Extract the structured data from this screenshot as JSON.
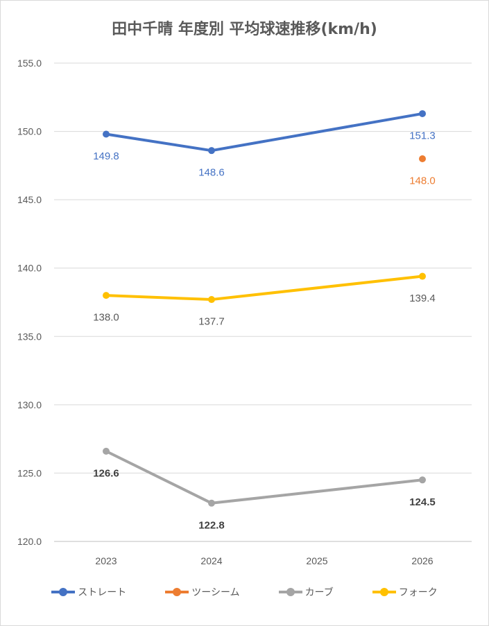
{
  "chart_data": {
    "type": "line",
    "title": "田中千晴 年度別 平均球速推移(km/h)",
    "categories": [
      "2023",
      "2024",
      "2025",
      "2026"
    ],
    "y_tick_labels": [
      "120.0",
      "125.0",
      "130.0",
      "135.0",
      "140.0",
      "145.0",
      "150.0",
      "155.0"
    ],
    "ylim": [
      120,
      155
    ],
    "grid": true,
    "legend_position": "bottom",
    "series": [
      {
        "name": "ストレート",
        "color": "#4472c4",
        "values": [
          149.8,
          148.6,
          null,
          151.3
        ],
        "labels": [
          "149.8",
          "148.6",
          null,
          "151.3"
        ],
        "label_color": "#4472c4",
        "label_bold": false,
        "label_dy": [
          1.6,
          1.6,
          0,
          1.6
        ]
      },
      {
        "name": "ツーシーム",
        "color": "#ed7d31",
        "values": [
          null,
          null,
          null,
          148.0
        ],
        "labels": [
          null,
          null,
          null,
          "148.0"
        ],
        "label_color": "#ed7d31",
        "label_bold": false,
        "label_dy": [
          0,
          0,
          0,
          1.6
        ]
      },
      {
        "name": "カーブ",
        "color": "#a5a5a5",
        "values": [
          126.6,
          122.8,
          null,
          124.5
        ],
        "labels": [
          "126.6",
          "122.8",
          null,
          "124.5"
        ],
        "label_color": "#404040",
        "label_bold": true,
        "label_dy": [
          1.6,
          1.6,
          0,
          1.6
        ]
      },
      {
        "name": "フォーク",
        "color": "#ffc000",
        "values": [
          138.0,
          137.7,
          null,
          139.4
        ],
        "labels": [
          "138.0",
          "137.7",
          null,
          "139.4"
        ],
        "label_color": "#595959",
        "label_bold": false,
        "label_dy": [
          1.6,
          1.6,
          0,
          1.6
        ]
      }
    ]
  }
}
